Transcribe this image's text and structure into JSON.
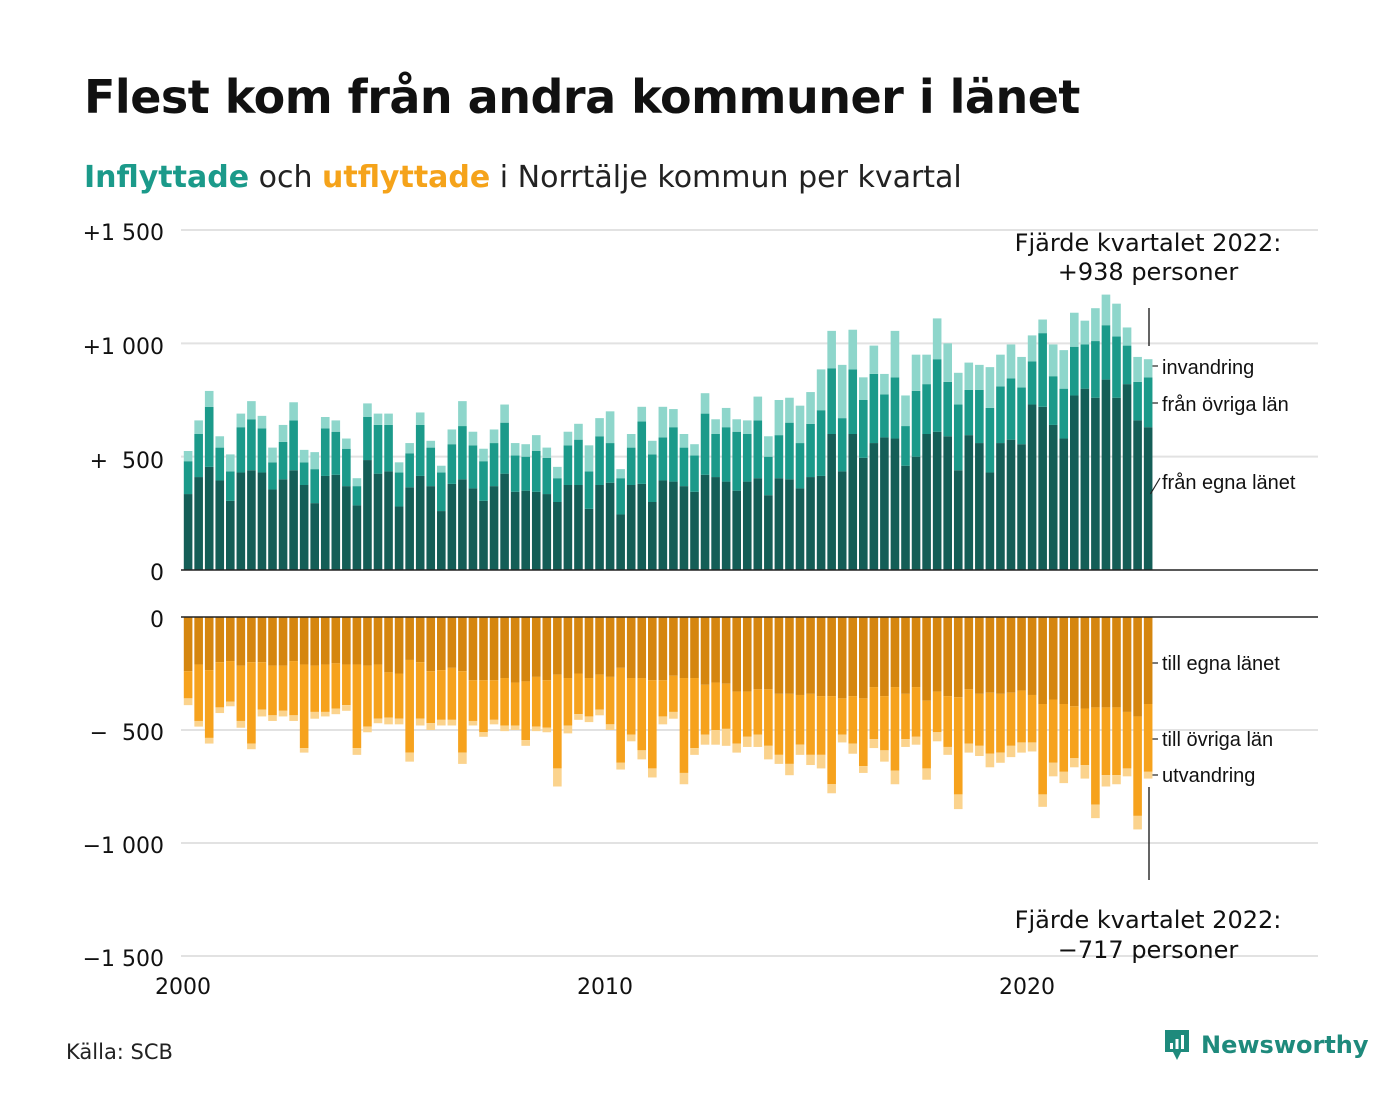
{
  "title": "Flest kom från andra kommuner i länet",
  "subtitle": {
    "part1": "Inflyttade",
    "part2": " och ",
    "part3": "utflyttade",
    "part4": " i Norrtälje kommun per kvartal"
  },
  "source": "Källa: SCB",
  "brand": "Newsworthy",
  "colors": {
    "in_own": "#145e57",
    "in_other": "#1b9a8a",
    "in_immig": "#8ed6cb",
    "out_own": "#d5860f",
    "out_other": "#f6a21d",
    "out_emig": "#fbd38d",
    "grid": "#e2e2e2",
    "brand": "#1e8a7c"
  },
  "chart_data": {
    "type": "bar",
    "stacked": true,
    "x_ticks": [
      "2000",
      "2010",
      "2020"
    ],
    "y_top_ticks": [
      "+1 500",
      "+1 000",
      "+  500",
      "0"
    ],
    "y_bottom_ticks": [
      "0",
      "−  500",
      "−1 000",
      "−1 500"
    ],
    "ylim_top": [
      0,
      1500
    ],
    "ylim_bottom": [
      -1500,
      0
    ],
    "x_start": "2000 Q1",
    "x_end": "2022 Q4",
    "labels_top": [
      "invandring",
      "från övriga län",
      "från egna länet"
    ],
    "labels_bottom": [
      "till egna länet",
      "till övriga län",
      "utvandring"
    ],
    "annotation_top": {
      "line1": "Fjärde kvartalet 2022:",
      "line2": "+938 personer"
    },
    "annotation_bottom": {
      "line1": "Fjärde kvartalet 2022:",
      "line2": "−717 personer"
    },
    "inflow": {
      "egna_lanet": [
        335,
        410,
        455,
        395,
        305,
        430,
        440,
        430,
        355,
        400,
        440,
        375,
        295,
        415,
        420,
        370,
        285,
        485,
        425,
        435,
        280,
        365,
        415,
        370,
        260,
        380,
        400,
        360,
        305,
        370,
        425,
        345,
        350,
        345,
        335,
        300,
        375,
        375,
        270,
        375,
        385,
        245,
        375,
        380,
        300,
        395,
        390,
        370,
        345,
        420,
        410,
        390,
        350,
        390,
        405,
        330,
        405,
        400,
        360,
        410,
        415,
        600,
        435,
        600,
        495,
        560,
        585,
        580,
        460,
        500,
        600,
        610,
        590,
        440,
        595,
        560,
        430,
        560,
        575,
        555,
        730,
        720,
        640,
        580,
        770,
        800,
        760,
        840,
        760,
        820,
        660,
        630
      ],
      "ovriga_lan": [
        145,
        190,
        265,
        145,
        130,
        200,
        225,
        195,
        120,
        165,
        220,
        100,
        150,
        210,
        190,
        165,
        85,
        190,
        215,
        205,
        150,
        150,
        225,
        170,
        170,
        175,
        235,
        190,
        175,
        190,
        225,
        160,
        150,
        180,
        160,
        105,
        175,
        200,
        165,
        215,
        175,
        160,
        165,
        275,
        210,
        190,
        240,
        170,
        160,
        270,
        190,
        240,
        260,
        210,
        255,
        170,
        190,
        250,
        200,
        235,
        290,
        290,
        235,
        285,
        255,
        305,
        190,
        270,
        175,
        290,
        220,
        320,
        240,
        290,
        200,
        235,
        285,
        250,
        270,
        250,
        190,
        325,
        215,
        220,
        215,
        195,
        250,
        240,
        270,
        170,
        170,
        220
      ],
      "invandring": [
        45,
        60,
        70,
        50,
        75,
        60,
        80,
        55,
        65,
        75,
        80,
        55,
        75,
        50,
        50,
        45,
        35,
        60,
        50,
        50,
        45,
        45,
        55,
        30,
        30,
        65,
        110,
        60,
        55,
        60,
        80,
        55,
        55,
        70,
        45,
        50,
        60,
        70,
        115,
        80,
        140,
        40,
        60,
        65,
        60,
        135,
        80,
        60,
        50,
        90,
        65,
        85,
        55,
        60,
        105,
        90,
        155,
        110,
        165,
        140,
        180,
        165,
        235,
        175,
        100,
        125,
        90,
        205,
        135,
        160,
        130,
        180,
        170,
        140,
        120,
        110,
        180,
        140,
        150,
        135,
        115,
        60,
        140,
        170,
        150,
        105,
        145,
        135,
        145,
        80,
        110,
        80
      ]
    },
    "outflow": {
      "egna_lanet": [
        240,
        210,
        235,
        200,
        195,
        215,
        200,
        200,
        215,
        215,
        195,
        210,
        215,
        210,
        205,
        210,
        210,
        215,
        210,
        245,
        250,
        190,
        200,
        240,
        235,
        225,
        240,
        280,
        280,
        280,
        270,
        290,
        285,
        265,
        280,
        255,
        270,
        250,
        270,
        255,
        265,
        225,
        270,
        270,
        280,
        280,
        260,
        270,
        270,
        300,
        290,
        295,
        330,
        330,
        320,
        320,
        340,
        340,
        345,
        340,
        350,
        350,
        360,
        350,
        360,
        310,
        350,
        310,
        340,
        310,
        370,
        330,
        350,
        355,
        320,
        340,
        335,
        340,
        335,
        325,
        345,
        385,
        365,
        385,
        395,
        405,
        400,
        400,
        400,
        420,
        440,
        385
      ],
      "ovriga_lan": [
        120,
        250,
        300,
        200,
        180,
        245,
        360,
        210,
        220,
        200,
        240,
        370,
        205,
        210,
        200,
        180,
        370,
        270,
        240,
        200,
        200,
        410,
        250,
        230,
        220,
        230,
        360,
        180,
        230,
        175,
        210,
        190,
        260,
        220,
        210,
        415,
        210,
        180,
        170,
        155,
        210,
        420,
        250,
        320,
        390,
        160,
        160,
        420,
        310,
        220,
        210,
        200,
        230,
        200,
        200,
        250,
        270,
        310,
        220,
        270,
        260,
        390,
        160,
        210,
        300,
        230,
        240,
        370,
        200,
        220,
        300,
        180,
        225,
        430,
        240,
        230,
        270,
        260,
        235,
        230,
        210,
        400,
        280,
        300,
        230,
        250,
        430,
        300,
        300,
        250,
        440,
        300
      ],
      "utvandring": [
        30,
        25,
        25,
        25,
        20,
        30,
        25,
        30,
        25,
        25,
        25,
        20,
        30,
        20,
        25,
        25,
        30,
        25,
        20,
        30,
        25,
        40,
        30,
        30,
        25,
        25,
        50,
        20,
        20,
        20,
        25,
        20,
        25,
        20,
        20,
        80,
        35,
        25,
        25,
        25,
        25,
        30,
        30,
        40,
        40,
        35,
        30,
        50,
        30,
        45,
        65,
        75,
        40,
        45,
        55,
        60,
        40,
        50,
        45,
        45,
        60,
        40,
        35,
        45,
        30,
        40,
        50,
        60,
        35,
        35,
        50,
        40,
        35,
        65,
        40,
        45,
        60,
        45,
        50,
        45,
        40,
        55,
        60,
        50,
        40,
        60,
        60,
        50,
        40,
        35,
        60,
        30
      ]
    }
  }
}
